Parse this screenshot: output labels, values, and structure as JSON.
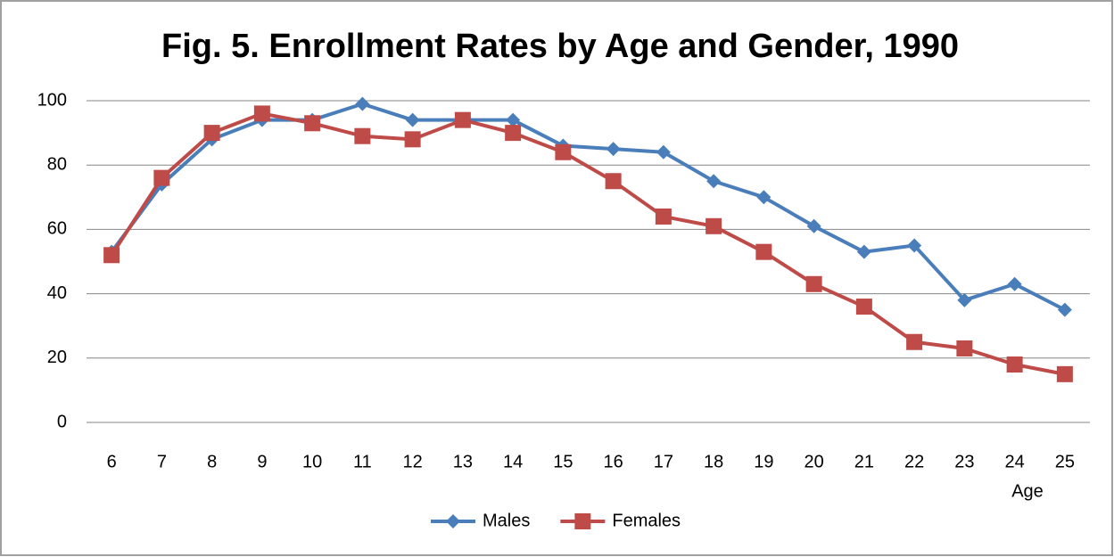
{
  "chart_data": {
    "type": "line",
    "title": "Fig. 5. Enrollment Rates by Age and Gender, 1990",
    "x_label": "Age",
    "categories": [
      "6",
      "7",
      "8",
      "9",
      "10",
      "11",
      "12",
      "13",
      "14",
      "15",
      "16",
      "17",
      "18",
      "19",
      "20",
      "21",
      "22",
      "23",
      "24",
      "25"
    ],
    "series": [
      {
        "name": "Males",
        "color": "#4a7ebb",
        "marker": "diamond",
        "values": [
          53,
          74,
          88,
          94,
          94,
          99,
          94,
          94,
          94,
          86,
          85,
          84,
          75,
          70,
          61,
          53,
          55,
          38,
          43,
          35
        ]
      },
      {
        "name": "Females",
        "color": "#be4b48",
        "marker": "square",
        "values": [
          52,
          76,
          90,
          96,
          93,
          89,
          88,
          94,
          90,
          84,
          75,
          64,
          61,
          53,
          43,
          36,
          25,
          23,
          18,
          15
        ]
      }
    ],
    "ylim": [
      0,
      100
    ],
    "yticks": [
      0,
      20,
      40,
      60,
      80,
      100
    ],
    "grid": true,
    "legend": "bottom"
  }
}
